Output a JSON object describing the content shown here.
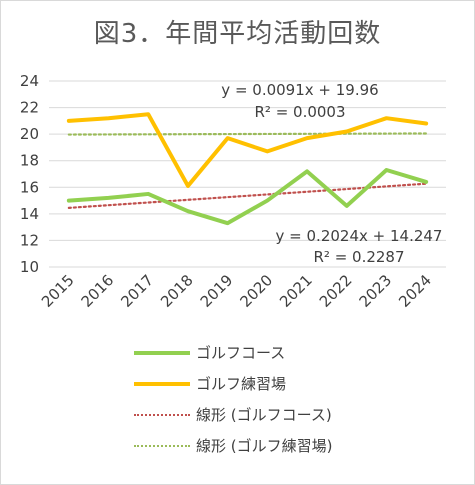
{
  "chart_data": {
    "type": "line",
    "title": "図3．年間平均活動回数",
    "xlabel": "",
    "ylabel": "",
    "categories": [
      "2015",
      "2016",
      "2017",
      "2018",
      "2019",
      "2020",
      "2021",
      "2022",
      "2023",
      "2024"
    ],
    "ylim": [
      10,
      24
    ],
    "yticks": [
      10,
      12,
      14,
      16,
      18,
      20,
      22,
      24
    ],
    "grid": "horizontal",
    "legend_placement": "bottom",
    "series": [
      {
        "name": "ゴルフコース",
        "color": "#92d050",
        "style": "solid",
        "values": [
          15.0,
          15.2,
          15.5,
          14.2,
          13.3,
          15.0,
          17.2,
          14.6,
          17.3,
          16.4
        ]
      },
      {
        "name": "ゴルフ練習場",
        "color": "#ffc000",
        "style": "solid",
        "values": [
          21.0,
          21.2,
          21.5,
          16.1,
          19.7,
          18.7,
          19.7,
          20.2,
          21.2,
          20.8
        ]
      }
    ],
    "trendlines": [
      {
        "name": "線形 (ゴルフコース)",
        "color": "#c0504d",
        "style": "dotted",
        "slope": 0.2024,
        "intercept": 14.247,
        "equation": "y = 0.2024x + 14.247",
        "r2": "R² = 0.2287"
      },
      {
        "name": "線形 (ゴルフ練習場)",
        "color": "#9bbb59",
        "style": "dotted",
        "slope": 0.0091,
        "intercept": 19.96,
        "equation": "y = 0.0091x + 19.96",
        "r2": "R² = 0.0003"
      }
    ]
  }
}
